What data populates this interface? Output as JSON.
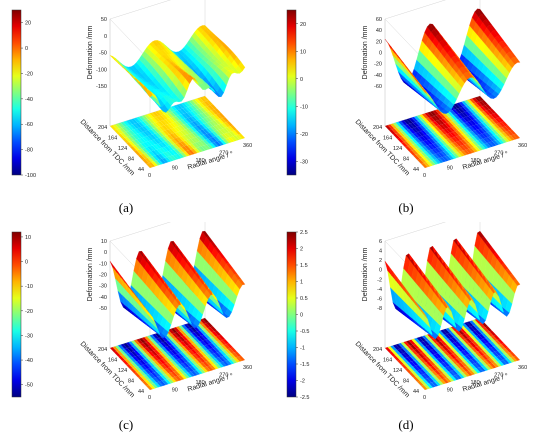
{
  "figure": {
    "panels": [
      {
        "label": "(a)"
      },
      {
        "label": "(b)"
      },
      {
        "label": "(c)"
      },
      {
        "label": "(d)"
      }
    ]
  },
  "chart_data": [
    {
      "type": "surface",
      "panel": "(a)",
      "zlabel": "Deformation /mm",
      "ylabel": "Distance from TDC /mm",
      "xlabel": "Radial angle / °",
      "x_ticks": [
        "0",
        "90",
        "180",
        "270",
        "360"
      ],
      "y_ticks": [
        "44",
        "84",
        "124",
        "164",
        "204"
      ],
      "z_ticks": [
        "50",
        "0",
        "-50",
        "-100",
        "-150"
      ],
      "colorbar_ticks": [
        "20",
        "0",
        "-20",
        "-40",
        "-60",
        "-80",
        "-100"
      ],
      "colorbar_range": [
        -100,
        30
      ],
      "colormap": "jet",
      "surface_pattern": {
        "low_order_waves": 1,
        "amplitude": 0.6
      }
    },
    {
      "type": "surface",
      "panel": "(b)",
      "zlabel": "Deformation /mm",
      "ylabel": "Distance from TDC /mm",
      "xlabel": "Radial angle / °",
      "x_ticks": [
        "0",
        "90",
        "180",
        "270",
        "360"
      ],
      "y_ticks": [
        "44",
        "84",
        "124",
        "164",
        "204"
      ],
      "z_ticks": [
        "60",
        "40",
        "20",
        "0",
        "-20",
        "-40",
        "-60"
      ],
      "colorbar_ticks": [
        "20",
        "10",
        "0",
        "-10",
        "-20",
        "-30"
      ],
      "colorbar_range": [
        -35,
        25
      ],
      "colormap": "jet",
      "surface_pattern": {
        "low_order_waves": 2,
        "amplitude": 1.0
      }
    },
    {
      "type": "surface",
      "panel": "(c)",
      "zlabel": "Deformation /mm",
      "ylabel": "Distance from TDC /mm",
      "xlabel": "Radial angle / °",
      "x_ticks": [
        "0",
        "90",
        "180",
        "270",
        "360"
      ],
      "y_ticks": [
        "44",
        "84",
        "124",
        "164",
        "204"
      ],
      "z_ticks": [
        "10",
        "0",
        "-10",
        "-20",
        "-30",
        "-40",
        "-50"
      ],
      "colorbar_ticks": [
        "10",
        "0",
        "-10",
        "-20",
        "-30",
        "-40",
        "-50"
      ],
      "colorbar_range": [
        -55,
        12
      ],
      "colormap": "jet",
      "surface_pattern": {
        "low_order_waves": 3,
        "amplitude": 1.0
      }
    },
    {
      "type": "surface",
      "panel": "(d)",
      "zlabel": "Deformation /mm",
      "ylabel": "Distance from TDC /mm",
      "xlabel": "Radial angle / °",
      "x_ticks": [
        "0",
        "90",
        "180",
        "270",
        "360"
      ],
      "y_ticks": [
        "44",
        "84",
        "124",
        "164",
        "204"
      ],
      "z_ticks": [
        "6",
        "4",
        "2",
        "0",
        "-2",
        "-4",
        "-6",
        "-8"
      ],
      "colorbar_ticks": [
        "2.5",
        "2",
        "1.5",
        "1",
        "0.5",
        "0",
        "-0.5",
        "-1",
        "-1.5",
        "-2",
        "-2.5"
      ],
      "colorbar_range": [
        -2.5,
        2.5
      ],
      "colormap": "jet",
      "surface_pattern": {
        "low_order_waves": 4,
        "amplitude": 1.0
      }
    }
  ]
}
